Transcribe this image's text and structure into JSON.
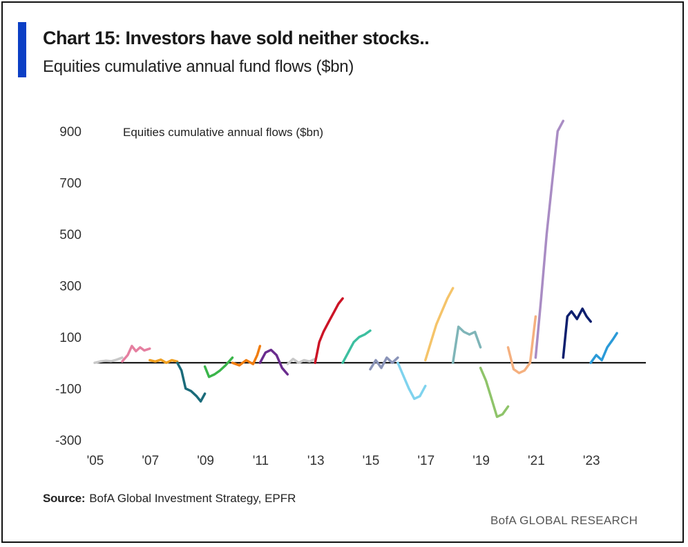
{
  "header": {
    "title": "Chart 15: Investors have sold neither stocks..",
    "subtitle": "Equities cumulative annual fund flows ($bn)"
  },
  "footer": {
    "source_label": "Source:",
    "source_text": "BofA Global Investment Strategy, EPFR",
    "brand": "BofA GLOBAL RESEARCH"
  },
  "colors": {
    "accent_bar": "#0b3fc5",
    "zero_line": "#000000"
  },
  "chart_data": {
    "type": "line",
    "title": "Equities cumulative annual flows ($bn)",
    "xlabel": "",
    "ylabel": "",
    "xlim": [
      2005,
      2025
    ],
    "ylim": [
      -300,
      950
    ],
    "x_ticks": [
      2005,
      2007,
      2009,
      2011,
      2013,
      2015,
      2017,
      2019,
      2021,
      2023
    ],
    "x_tick_labels": [
      "'05",
      "'07",
      "'09",
      "'11",
      "'13",
      "'15",
      "'17",
      "'19",
      "'21",
      "'23"
    ],
    "y_ticks": [
      900,
      700,
      500,
      300,
      100,
      -100,
      -300
    ],
    "y_tick_labels": [
      "900",
      "700",
      "500",
      "300",
      "100",
      "-100",
      "-300"
    ],
    "grid": false,
    "legend": "none",
    "series": [
      {
        "year": 2005,
        "color": "#c8c8c8",
        "points": [
          [
            2005.0,
            0
          ],
          [
            2005.2,
            5
          ],
          [
            2005.4,
            8
          ],
          [
            2005.6,
            6
          ],
          [
            2005.8,
            12
          ],
          [
            2006.0,
            20
          ]
        ]
      },
      {
        "year": 2006,
        "color": "#e57fa0",
        "points": [
          [
            2006.0,
            5
          ],
          [
            2006.2,
            30
          ],
          [
            2006.35,
            65
          ],
          [
            2006.5,
            45
          ],
          [
            2006.65,
            60
          ],
          [
            2006.8,
            48
          ],
          [
            2007.0,
            55
          ]
        ]
      },
      {
        "year": 2007,
        "color": "#f0a020",
        "points": [
          [
            2007.0,
            10
          ],
          [
            2007.2,
            5
          ],
          [
            2007.4,
            12
          ],
          [
            2007.6,
            0
          ],
          [
            2007.8,
            10
          ],
          [
            2008.0,
            5
          ]
        ]
      },
      {
        "year": 2008,
        "color": "#1a6b7a",
        "points": [
          [
            2008.0,
            0
          ],
          [
            2008.15,
            -30
          ],
          [
            2008.3,
            -100
          ],
          [
            2008.5,
            -110
          ],
          [
            2008.7,
            -130
          ],
          [
            2008.85,
            -150
          ],
          [
            2009.0,
            -120
          ]
        ]
      },
      {
        "year": 2009,
        "color": "#3ab54a",
        "points": [
          [
            2009.0,
            -15
          ],
          [
            2009.15,
            -55
          ],
          [
            2009.35,
            -45
          ],
          [
            2009.55,
            -30
          ],
          [
            2009.75,
            -10
          ],
          [
            2010.0,
            20
          ]
        ]
      },
      {
        "year": 2010,
        "color": "#f07d10",
        "points": [
          [
            2010.0,
            0
          ],
          [
            2010.25,
            -10
          ],
          [
            2010.5,
            10
          ],
          [
            2010.75,
            -5
          ],
          [
            2010.9,
            30
          ],
          [
            2011.0,
            65
          ]
        ]
      },
      {
        "year": 2011,
        "color": "#6a2c8e",
        "points": [
          [
            2011.0,
            0
          ],
          [
            2011.2,
            40
          ],
          [
            2011.4,
            50
          ],
          [
            2011.6,
            30
          ],
          [
            2011.8,
            -20
          ],
          [
            2012.0,
            -45
          ]
        ]
      },
      {
        "year": 2012,
        "color": "#c8c8c8",
        "points": [
          [
            2012.0,
            -5
          ],
          [
            2012.2,
            15
          ],
          [
            2012.4,
            0
          ],
          [
            2012.6,
            10
          ],
          [
            2012.8,
            5
          ],
          [
            2013.0,
            15
          ]
        ]
      },
      {
        "year": 2013,
        "color": "#cc1426",
        "points": [
          [
            2013.0,
            0
          ],
          [
            2013.15,
            80
          ],
          [
            2013.3,
            120
          ],
          [
            2013.5,
            160
          ],
          [
            2013.7,
            200
          ],
          [
            2013.85,
            230
          ],
          [
            2014.0,
            250
          ]
        ]
      },
      {
        "year": 2014,
        "color": "#3dbfa0",
        "points": [
          [
            2014.0,
            0
          ],
          [
            2014.2,
            40
          ],
          [
            2014.4,
            80
          ],
          [
            2014.6,
            100
          ],
          [
            2014.8,
            110
          ],
          [
            2015.0,
            125
          ]
        ]
      },
      {
        "year": 2015,
        "color": "#8a94b8",
        "points": [
          [
            2015.0,
            -25
          ],
          [
            2015.2,
            10
          ],
          [
            2015.4,
            -20
          ],
          [
            2015.6,
            20
          ],
          [
            2015.8,
            0
          ],
          [
            2016.0,
            20
          ]
        ]
      },
      {
        "year": 2016,
        "color": "#7fd3ee",
        "points": [
          [
            2016.0,
            0
          ],
          [
            2016.2,
            -50
          ],
          [
            2016.4,
            -100
          ],
          [
            2016.6,
            -140
          ],
          [
            2016.8,
            -130
          ],
          [
            2017.0,
            -90
          ]
        ]
      },
      {
        "year": 2017,
        "color": "#f5c46a",
        "points": [
          [
            2017.0,
            10
          ],
          [
            2017.2,
            80
          ],
          [
            2017.4,
            150
          ],
          [
            2017.6,
            200
          ],
          [
            2017.8,
            250
          ],
          [
            2018.0,
            290
          ]
        ]
      },
      {
        "year": 2018,
        "color": "#7fb5b8",
        "points": [
          [
            2018.0,
            0
          ],
          [
            2018.2,
            140
          ],
          [
            2018.4,
            120
          ],
          [
            2018.6,
            110
          ],
          [
            2018.8,
            120
          ],
          [
            2019.0,
            60
          ]
        ]
      },
      {
        "year": 2019,
        "color": "#8fc46a",
        "points": [
          [
            2019.0,
            -20
          ],
          [
            2019.2,
            -70
          ],
          [
            2019.4,
            -140
          ],
          [
            2019.6,
            -210
          ],
          [
            2019.8,
            -200
          ],
          [
            2020.0,
            -170
          ]
        ]
      },
      {
        "year": 2020,
        "color": "#f5b07f",
        "points": [
          [
            2020.0,
            60
          ],
          [
            2020.2,
            -25
          ],
          [
            2020.4,
            -40
          ],
          [
            2020.6,
            -30
          ],
          [
            2020.8,
            0
          ],
          [
            2021.0,
            180
          ]
        ]
      },
      {
        "year": 2021,
        "color": "#a98cc4",
        "points": [
          [
            2021.0,
            20
          ],
          [
            2021.2,
            250
          ],
          [
            2021.4,
            500
          ],
          [
            2021.6,
            700
          ],
          [
            2021.8,
            900
          ],
          [
            2022.0,
            940
          ]
        ]
      },
      {
        "year": 2022,
        "color": "#0d1f6e",
        "points": [
          [
            2022.0,
            20
          ],
          [
            2022.15,
            180
          ],
          [
            2022.3,
            200
          ],
          [
            2022.5,
            170
          ],
          [
            2022.7,
            210
          ],
          [
            2022.85,
            180
          ],
          [
            2023.0,
            160
          ]
        ]
      },
      {
        "year": 2023,
        "color": "#2a9ad8",
        "points": [
          [
            2023.0,
            0
          ],
          [
            2023.2,
            30
          ],
          [
            2023.4,
            10
          ],
          [
            2023.6,
            60
          ],
          [
            2023.8,
            90
          ],
          [
            2023.95,
            115
          ]
        ]
      }
    ]
  }
}
